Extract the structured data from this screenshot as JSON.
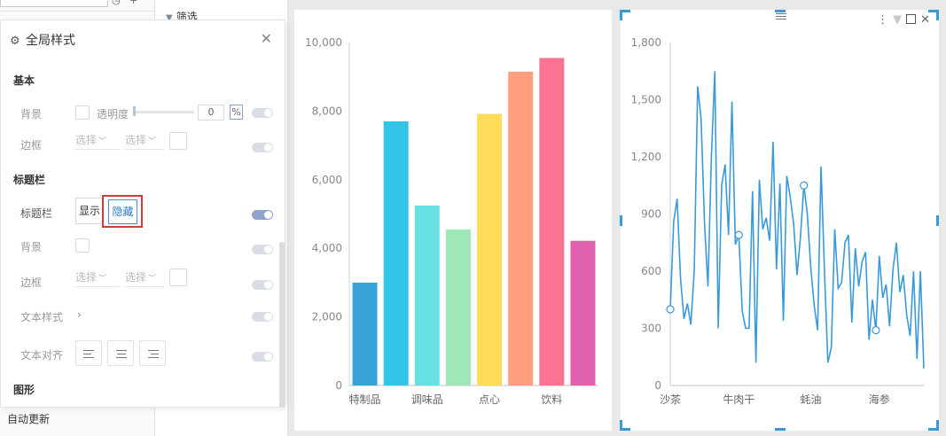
{
  "left_strip": {
    "auto_update": "自动更新"
  },
  "filter": {
    "title": "筛选"
  },
  "panel": {
    "title": "全局样式",
    "basic": {
      "section": "基本",
      "background_label": "背景",
      "opacity_label": "透明度",
      "opacity_value": "0",
      "opacity_unit": "%",
      "border_label": "边框",
      "select1": "选择",
      "select2": "选择"
    },
    "titlebar": {
      "section": "标题栏",
      "titlebar_label": "标题栏",
      "show_label": "显示",
      "hide_label": "隐藏",
      "background_label": "背景",
      "border_label": "边框",
      "select1": "选择",
      "select2": "选择",
      "text_style_label": "文本样式",
      "text_align_label": "文本对齐"
    },
    "graphic": {
      "section": "图形"
    }
  },
  "colors": {
    "accent": "#3a9ad9",
    "highlight_outline": "#d83a3a",
    "line": "#3a9ad9"
  },
  "chart_data": [
    {
      "type": "bar",
      "categories": [
        "特制品",
        "",
        "调味品",
        "",
        "点心",
        "",
        "饮料",
        ""
      ],
      "values": [
        3000,
        7700,
        5250,
        4550,
        7920,
        9150,
        9550,
        4220
      ],
      "colors": [
        "#37a2da",
        "#32c5e9",
        "#67e0e3",
        "#9fe6b8",
        "#ffdb5c",
        "#ff9f7f",
        "#fb7293",
        "#e062ae"
      ],
      "ylim": [
        0,
        10000
      ],
      "yticks": [
        "0",
        "2,000",
        "4,000",
        "6,000",
        "8,000",
        "10,000"
      ],
      "grid": false
    },
    {
      "type": "line",
      "x_labels": [
        "沙茶",
        "牛肉干",
        "蚝油",
        "海参"
      ],
      "ylim": [
        0,
        1800
      ],
      "yticks": [
        "0",
        "300",
        "600",
        "900",
        "1,200",
        "1,500",
        "1,800"
      ],
      "values": [
        400,
        860,
        980,
        560,
        350,
        430,
        320,
        600,
        1570,
        1400,
        850,
        520,
        1200,
        1650,
        300,
        1050,
        1160,
        790,
        1490,
        740,
        790,
        390,
        300,
        300,
        1020,
        120,
        1080,
        820,
        880,
        760,
        1280,
        610,
        1060,
        340,
        1100,
        990,
        850,
        580,
        780,
        1050,
        900,
        620,
        420,
        290,
        1150,
        600,
        120,
        200,
        820,
        510,
        540,
        750,
        790,
        330,
        720,
        520,
        650,
        700,
        240,
        450,
        290,
        680,
        460,
        530,
        310,
        610,
        750,
        490,
        580,
        370,
        260,
        600,
        140,
        600,
        90
      ],
      "markers": [
        0,
        20,
        39,
        60
      ],
      "grid": false
    }
  ]
}
